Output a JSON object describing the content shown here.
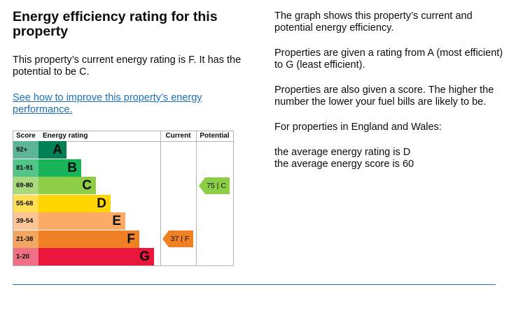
{
  "heading": "Energy efficiency rating for this property",
  "lead": "This property’s current energy rating is F. It has the potential to be C.",
  "link_text": "See how to improve this property’s energy performance.",
  "info": {
    "p1": "The graph shows this property’s current and potential energy efficiency.",
    "p2": "Properties are given a rating from A (most efficient) to G (least efficient).",
    "p3": "Properties are also given a score. The higher the number the lower your fuel bills are likely to be.",
    "p4": "For properties in England and Wales:",
    "p5": "the average energy rating is D",
    "p6": "the average energy score is 60"
  },
  "chart_data": {
    "type": "table",
    "headers": {
      "score": "Score",
      "rating": "Energy rating",
      "current": "Current",
      "potential": "Potential"
    },
    "bands": [
      {
        "score": "92+",
        "letter": "A",
        "color": "#008054"
      },
      {
        "score": "81-91",
        "letter": "B",
        "color": "#19b459"
      },
      {
        "score": "69-80",
        "letter": "C",
        "color": "#8dce46"
      },
      {
        "score": "55-68",
        "letter": "D",
        "color": "#ffd500"
      },
      {
        "score": "39-54",
        "letter": "E",
        "color": "#fcaa65"
      },
      {
        "score": "21-38",
        "letter": "F",
        "color": "#ef8023"
      },
      {
        "score": "1-20",
        "letter": "G",
        "color": "#e9153b"
      }
    ],
    "current": {
      "score": 37,
      "letter": "F",
      "label": "37 | F"
    },
    "potential": {
      "score": 75,
      "letter": "C",
      "label": "75 | C"
    }
  }
}
